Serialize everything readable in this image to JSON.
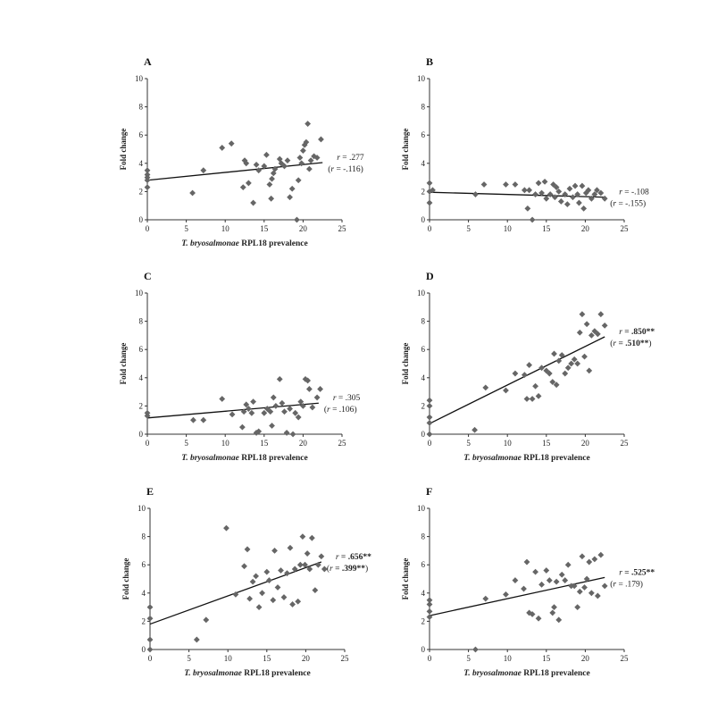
{
  "chart_data": [
    {
      "type": "scatter",
      "panel_label": "A",
      "xlabel_italic": "T. bryosalmonae",
      "xlabel_rest": "RPL18 prevalence",
      "ylabel": "Fold change",
      "xlim": [
        0,
        25
      ],
      "ylim": [
        0,
        10
      ],
      "xticks": [
        "0",
        "5",
        "10",
        "15",
        "20",
        "25"
      ],
      "yticks": [
        "0",
        "2",
        "4",
        "6",
        "8",
        "10"
      ],
      "annotation_r": ".277",
      "annotation_rho": "-.116",
      "bold_values": false,
      "regression": {
        "x": [
          0,
          22.5
        ],
        "y": [
          2.8,
          4.05
        ]
      },
      "points": [
        [
          0,
          2.3
        ],
        [
          0,
          2.8
        ],
        [
          0,
          3.0
        ],
        [
          0,
          3.2
        ],
        [
          0,
          3.5
        ],
        [
          5.8,
          1.9
        ],
        [
          7.2,
          3.5
        ],
        [
          9.6,
          5.1
        ],
        [
          10.8,
          5.4
        ],
        [
          12.3,
          2.3
        ],
        [
          12.5,
          4.2
        ],
        [
          12.7,
          4.0
        ],
        [
          13.0,
          2.6
        ],
        [
          13.6,
          1.2
        ],
        [
          14.0,
          3.9
        ],
        [
          14.3,
          3.5
        ],
        [
          15.0,
          3.8
        ],
        [
          15.3,
          4.6
        ],
        [
          15.7,
          2.5
        ],
        [
          15.9,
          1.5
        ],
        [
          16.0,
          2.9
        ],
        [
          16.2,
          3.3
        ],
        [
          16.4,
          3.6
        ],
        [
          17.0,
          4.3
        ],
        [
          17.2,
          4.0
        ],
        [
          17.6,
          3.8
        ],
        [
          18.0,
          4.2
        ],
        [
          18.3,
          1.6
        ],
        [
          18.6,
          2.2
        ],
        [
          19.2,
          0.0
        ],
        [
          19.4,
          2.8
        ],
        [
          19.6,
          4.4
        ],
        [
          19.8,
          4.0
        ],
        [
          20.0,
          4.9
        ],
        [
          20.2,
          5.3
        ],
        [
          20.4,
          5.5
        ],
        [
          20.6,
          6.8
        ],
        [
          20.8,
          3.6
        ],
        [
          21.0,
          4.2
        ],
        [
          21.4,
          4.5
        ],
        [
          21.8,
          4.4
        ],
        [
          22.3,
          5.7
        ]
      ]
    },
    {
      "type": "scatter",
      "panel_label": "B",
      "xlabel_italic": "",
      "xlabel_rest": "",
      "ylabel": "Fold change",
      "xlim": [
        0,
        25
      ],
      "ylim": [
        0,
        10
      ],
      "xticks": [
        "0",
        "5",
        "10",
        "15",
        "20",
        "25"
      ],
      "yticks": [
        "0",
        "2",
        "4",
        "6",
        "8",
        "10"
      ],
      "annotation_r": "-.108",
      "annotation_rho": "-.155",
      "bold_values": false,
      "regression": {
        "x": [
          0,
          22.5
        ],
        "y": [
          1.95,
          1.6
        ]
      },
      "points": [
        [
          0,
          1.2
        ],
        [
          0,
          2.0
        ],
        [
          0,
          2.6
        ],
        [
          0.4,
          2.1
        ],
        [
          5.9,
          1.8
        ],
        [
          7.0,
          2.5
        ],
        [
          9.8,
          2.5
        ],
        [
          11.0,
          2.5
        ],
        [
          12.2,
          2.1
        ],
        [
          12.6,
          0.8
        ],
        [
          12.8,
          2.1
        ],
        [
          13.2,
          0.0
        ],
        [
          13.6,
          1.8
        ],
        [
          14.0,
          2.6
        ],
        [
          14.4,
          1.9
        ],
        [
          14.8,
          2.7
        ],
        [
          15.0,
          1.5
        ],
        [
          15.5,
          1.8
        ],
        [
          15.9,
          2.5
        ],
        [
          16.1,
          1.6
        ],
        [
          16.3,
          2.3
        ],
        [
          16.6,
          2.0
        ],
        [
          16.9,
          1.3
        ],
        [
          17.4,
          1.8
        ],
        [
          17.7,
          1.1
        ],
        [
          18.0,
          2.2
        ],
        [
          18.4,
          1.6
        ],
        [
          18.7,
          2.4
        ],
        [
          19.0,
          1.8
        ],
        [
          19.2,
          1.2
        ],
        [
          19.6,
          2.4
        ],
        [
          19.8,
          0.8
        ],
        [
          20.1,
          1.9
        ],
        [
          20.4,
          2.1
        ],
        [
          20.8,
          1.5
        ],
        [
          21.2,
          1.8
        ],
        [
          21.5,
          2.1
        ],
        [
          22.0,
          1.9
        ],
        [
          22.5,
          1.5
        ]
      ]
    },
    {
      "type": "scatter",
      "panel_label": "C",
      "xlabel_italic": "T. bryosalmonae",
      "xlabel_rest": "RPL18 prevalence",
      "ylabel": "Fold change",
      "xlim": [
        0,
        25
      ],
      "ylim": [
        0,
        10
      ],
      "xticks": [
        "0",
        "5",
        "10",
        "15",
        "20",
        "25"
      ],
      "yticks": [
        "0",
        "2",
        "4",
        "6",
        "8",
        "10"
      ],
      "annotation_r": ".305",
      "annotation_rho": ".106",
      "bold_values": false,
      "regression": {
        "x": [
          0,
          22.0
        ],
        "y": [
          1.15,
          2.2
        ]
      },
      "points": [
        [
          0,
          1.3
        ],
        [
          0,
          1.5
        ],
        [
          5.9,
          1.0
        ],
        [
          7.2,
          1.0
        ],
        [
          9.6,
          2.5
        ],
        [
          10.9,
          1.4
        ],
        [
          12.2,
          0.5
        ],
        [
          12.4,
          1.6
        ],
        [
          12.7,
          2.1
        ],
        [
          13.0,
          1.8
        ],
        [
          13.4,
          1.5
        ],
        [
          13.6,
          2.3
        ],
        [
          14.0,
          0.1
        ],
        [
          14.3,
          0.2
        ],
        [
          15.0,
          1.5
        ],
        [
          15.4,
          1.8
        ],
        [
          15.8,
          1.6
        ],
        [
          16.0,
          0.6
        ],
        [
          16.2,
          2.6
        ],
        [
          16.5,
          2.0
        ],
        [
          17.0,
          3.9
        ],
        [
          17.3,
          2.2
        ],
        [
          17.6,
          1.6
        ],
        [
          17.9,
          0.1
        ],
        [
          18.3,
          1.8
        ],
        [
          18.7,
          0.0
        ],
        [
          19.0,
          1.5
        ],
        [
          19.4,
          1.2
        ],
        [
          19.7,
          2.3
        ],
        [
          20.0,
          2.0
        ],
        [
          20.3,
          3.9
        ],
        [
          20.6,
          3.8
        ],
        [
          20.8,
          3.2
        ],
        [
          21.2,
          1.9
        ],
        [
          21.8,
          2.6
        ],
        [
          22.2,
          3.2
        ]
      ]
    },
    {
      "type": "scatter",
      "panel_label": "D",
      "xlabel_italic": "T. bryosalmonae",
      "xlabel_rest": "RPL18 prevalence",
      "ylabel": "Fold change",
      "xlim": [
        0,
        25
      ],
      "ylim": [
        0,
        10
      ],
      "xticks": [
        "0",
        "5",
        "10",
        "15",
        "20",
        "25"
      ],
      "yticks": [
        "0",
        "2",
        "4",
        "6",
        "8",
        "10"
      ],
      "annotation_r": ".850**",
      "annotation_rho": ".510**",
      "bold_values": true,
      "regression": {
        "x": [
          0,
          22.5
        ],
        "y": [
          0.75,
          6.9
        ]
      },
      "points": [
        [
          0,
          0.0
        ],
        [
          0,
          0.8
        ],
        [
          0,
          1.2
        ],
        [
          0,
          2.0
        ],
        [
          0,
          2.4
        ],
        [
          5.8,
          0.3
        ],
        [
          7.2,
          3.3
        ],
        [
          9.8,
          3.1
        ],
        [
          11.0,
          4.3
        ],
        [
          12.2,
          4.2
        ],
        [
          12.5,
          2.5
        ],
        [
          12.8,
          4.9
        ],
        [
          13.2,
          2.5
        ],
        [
          13.6,
          3.4
        ],
        [
          14.0,
          2.7
        ],
        [
          14.4,
          4.7
        ],
        [
          15.0,
          4.5
        ],
        [
          15.4,
          4.3
        ],
        [
          15.8,
          3.7
        ],
        [
          16.0,
          5.7
        ],
        [
          16.3,
          3.5
        ],
        [
          16.6,
          5.2
        ],
        [
          17.0,
          5.6
        ],
        [
          17.4,
          4.3
        ],
        [
          17.8,
          4.7
        ],
        [
          18.2,
          5.0
        ],
        [
          18.6,
          5.3
        ],
        [
          19.0,
          5.0
        ],
        [
          19.3,
          7.2
        ],
        [
          19.6,
          8.5
        ],
        [
          19.9,
          5.5
        ],
        [
          20.2,
          7.8
        ],
        [
          20.5,
          4.5
        ],
        [
          20.8,
          7.0
        ],
        [
          21.2,
          7.3
        ],
        [
          21.6,
          7.1
        ],
        [
          22.0,
          8.5
        ],
        [
          22.5,
          7.7
        ]
      ]
    },
    {
      "type": "scatter",
      "panel_label": "E",
      "xlabel_italic": "T. bryosalmonae",
      "xlabel_rest": "RPL18 prevalence",
      "ylabel": "Fold change",
      "xlim": [
        0,
        25
      ],
      "ylim": [
        0,
        10
      ],
      "xticks": [
        "0",
        "5",
        "10",
        "15",
        "20",
        "25"
      ],
      "yticks": [
        "0",
        "2",
        "4",
        "6",
        "8",
        "10"
      ],
      "annotation_r": ".656**",
      "annotation_rho": ".399**",
      "bold_values": true,
      "regression": {
        "x": [
          0,
          22.0
        ],
        "y": [
          1.8,
          6.2
        ]
      },
      "points": [
        [
          0,
          0.0
        ],
        [
          0,
          0.7
        ],
        [
          0,
          2.2
        ],
        [
          0,
          3.0
        ],
        [
          6.0,
          0.7
        ],
        [
          7.2,
          2.1
        ],
        [
          9.8,
          8.6
        ],
        [
          11.0,
          3.9
        ],
        [
          12.1,
          5.9
        ],
        [
          12.5,
          7.1
        ],
        [
          12.8,
          3.6
        ],
        [
          13.2,
          4.8
        ],
        [
          13.6,
          5.2
        ],
        [
          14.0,
          3.0
        ],
        [
          14.4,
          4.0
        ],
        [
          15.0,
          5.5
        ],
        [
          15.3,
          4.9
        ],
        [
          15.8,
          3.5
        ],
        [
          16.0,
          7.0
        ],
        [
          16.4,
          4.4
        ],
        [
          16.8,
          5.6
        ],
        [
          17.2,
          3.7
        ],
        [
          17.6,
          5.4
        ],
        [
          18.0,
          7.2
        ],
        [
          18.3,
          3.2
        ],
        [
          18.6,
          5.7
        ],
        [
          19.0,
          3.4
        ],
        [
          19.3,
          6.0
        ],
        [
          19.6,
          8.0
        ],
        [
          19.9,
          6.0
        ],
        [
          20.2,
          6.8
        ],
        [
          20.5,
          5.7
        ],
        [
          20.8,
          7.9
        ],
        [
          21.2,
          4.2
        ],
        [
          21.6,
          6.0
        ],
        [
          22.0,
          6.6
        ],
        [
          22.4,
          5.7
        ]
      ]
    },
    {
      "type": "scatter",
      "panel_label": "F",
      "xlabel_italic": "T. bryosalmonae",
      "xlabel_rest": "RPL18 prevalence",
      "ylabel": "Fold change",
      "xlim": [
        0,
        25
      ],
      "ylim": [
        0,
        10
      ],
      "xticks": [
        "0",
        "5",
        "10",
        "15",
        "20",
        "25"
      ],
      "yticks": [
        "0",
        "2",
        "4",
        "6",
        "8",
        "10"
      ],
      "annotation_r": ".525**",
      "annotation_rho": ".179",
      "bold_values": "r_only",
      "regression": {
        "x": [
          0,
          22.5
        ],
        "y": [
          2.4,
          5.1
        ]
      },
      "points": [
        [
          0,
          2.3
        ],
        [
          0,
          2.7
        ],
        [
          0,
          3.2
        ],
        [
          0,
          3.5
        ],
        [
          5.9,
          0.0
        ],
        [
          7.2,
          3.6
        ],
        [
          9.8,
          3.9
        ],
        [
          11.0,
          4.9
        ],
        [
          12.1,
          4.3
        ],
        [
          12.5,
          6.2
        ],
        [
          12.8,
          2.6
        ],
        [
          13.2,
          2.5
        ],
        [
          13.6,
          5.5
        ],
        [
          14.0,
          2.2
        ],
        [
          14.4,
          4.6
        ],
        [
          15.0,
          5.6
        ],
        [
          15.4,
          4.9
        ],
        [
          15.8,
          2.6
        ],
        [
          16.0,
          3.0
        ],
        [
          16.3,
          4.8
        ],
        [
          16.6,
          2.1
        ],
        [
          17.0,
          5.3
        ],
        [
          17.4,
          4.9
        ],
        [
          17.8,
          6.0
        ],
        [
          18.2,
          4.5
        ],
        [
          18.6,
          4.5
        ],
        [
          19.0,
          3.0
        ],
        [
          19.3,
          4.1
        ],
        [
          19.6,
          6.6
        ],
        [
          19.9,
          4.4
        ],
        [
          20.2,
          5.0
        ],
        [
          20.5,
          6.2
        ],
        [
          20.8,
          4.0
        ],
        [
          21.2,
          6.4
        ],
        [
          21.6,
          3.8
        ],
        [
          22.0,
          6.7
        ],
        [
          22.5,
          4.5
        ]
      ]
    }
  ]
}
